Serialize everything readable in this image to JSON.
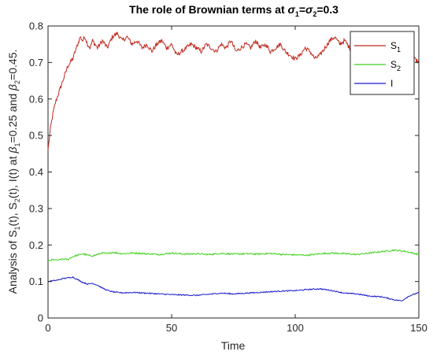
{
  "chart_data": {
    "type": "line",
    "title": {
      "prefix": "The role of Brownian terms at ",
      "sym1": "σ",
      "sub1": "1",
      "eq1": "=",
      "sym2": "σ",
      "sub2": "2",
      "suffix": "=0.3"
    },
    "xlabel": "Time",
    "ylabel": {
      "p1": "Analysis of S",
      "s1": "1",
      "p2": "(t), S",
      "s2": "2",
      "p3": "(t), I(t) at ",
      "beta1": "β",
      "s3": "1",
      "p4": "=0.25 and ",
      "beta2": "β",
      "s4": "2",
      "p5": "=0.45."
    },
    "xlim": [
      0,
      150
    ],
    "ylim": [
      0,
      0.8
    ],
    "x_ticks": [
      "0",
      "50",
      "100",
      "150"
    ],
    "y_ticks": [
      "0",
      "0.1",
      "0.2",
      "0.3",
      "0.4",
      "0.5",
      "0.6",
      "0.7",
      "0.8"
    ],
    "grid": false,
    "legend_position": "top-right",
    "series": [
      {
        "name": "S1",
        "legend_main": "S",
        "legend_sub": "1",
        "color": "#c0281e",
        "points": [
          [
            0,
            0.46
          ],
          [
            1,
            0.52
          ],
          [
            2,
            0.56
          ],
          [
            3,
            0.59
          ],
          [
            4,
            0.61
          ],
          [
            5,
            0.63
          ],
          [
            6,
            0.65
          ],
          [
            7,
            0.67
          ],
          [
            8,
            0.69
          ],
          [
            9,
            0.7
          ],
          [
            10,
            0.71
          ],
          [
            11,
            0.73
          ],
          [
            12,
            0.75
          ],
          [
            13,
            0.77
          ],
          [
            14,
            0.76
          ],
          [
            15,
            0.77
          ],
          [
            16,
            0.75
          ],
          [
            17,
            0.74
          ],
          [
            18,
            0.76
          ],
          [
            19,
            0.75
          ],
          [
            20,
            0.74
          ],
          [
            22,
            0.76
          ],
          [
            24,
            0.74
          ],
          [
            26,
            0.77
          ],
          [
            28,
            0.78
          ],
          [
            30,
            0.76
          ],
          [
            32,
            0.77
          ],
          [
            34,
            0.75
          ],
          [
            36,
            0.76
          ],
          [
            38,
            0.74
          ],
          [
            40,
            0.75
          ],
          [
            42,
            0.73
          ],
          [
            44,
            0.75
          ],
          [
            46,
            0.76
          ],
          [
            48,
            0.74
          ],
          [
            50,
            0.75
          ],
          [
            52,
            0.72
          ],
          [
            54,
            0.73
          ],
          [
            56,
            0.74
          ],
          [
            58,
            0.75
          ],
          [
            60,
            0.74
          ],
          [
            62,
            0.73
          ],
          [
            64,
            0.75
          ],
          [
            66,
            0.74
          ],
          [
            68,
            0.73
          ],
          [
            70,
            0.75
          ],
          [
            72,
            0.74
          ],
          [
            74,
            0.76
          ],
          [
            76,
            0.73
          ],
          [
            78,
            0.74
          ],
          [
            80,
            0.75
          ],
          [
            82,
            0.74
          ],
          [
            84,
            0.76
          ],
          [
            86,
            0.74
          ],
          [
            88,
            0.75
          ],
          [
            90,
            0.73
          ],
          [
            92,
            0.74
          ],
          [
            94,
            0.75
          ],
          [
            96,
            0.73
          ],
          [
            98,
            0.72
          ],
          [
            100,
            0.71
          ],
          [
            102,
            0.72
          ],
          [
            104,
            0.74
          ],
          [
            106,
            0.73
          ],
          [
            108,
            0.71
          ],
          [
            110,
            0.72
          ],
          [
            112,
            0.74
          ],
          [
            114,
            0.76
          ],
          [
            116,
            0.77
          ],
          [
            118,
            0.75
          ],
          [
            120,
            0.76
          ],
          [
            122,
            0.74
          ],
          [
            124,
            0.72
          ],
          [
            126,
            0.74
          ],
          [
            128,
            0.73
          ],
          [
            130,
            0.75
          ],
          [
            132,
            0.76
          ],
          [
            134,
            0.77
          ],
          [
            136,
            0.78
          ],
          [
            138,
            0.76
          ],
          [
            140,
            0.77
          ],
          [
            142,
            0.75
          ],
          [
            144,
            0.73
          ],
          [
            146,
            0.72
          ],
          [
            148,
            0.71
          ],
          [
            150,
            0.7
          ]
        ]
      },
      {
        "name": "S2",
        "legend_main": "S",
        "legend_sub": "2",
        "color": "#3fd11e",
        "points": [
          [
            0,
            0.155
          ],
          [
            2,
            0.16
          ],
          [
            4,
            0.158
          ],
          [
            6,
            0.162
          ],
          [
            8,
            0.16
          ],
          [
            10,
            0.168
          ],
          [
            12,
            0.172
          ],
          [
            14,
            0.176
          ],
          [
            16,
            0.172
          ],
          [
            18,
            0.17
          ],
          [
            20,
            0.174
          ],
          [
            22,
            0.178
          ],
          [
            24,
            0.176
          ],
          [
            26,
            0.18
          ],
          [
            28,
            0.178
          ],
          [
            30,
            0.176
          ],
          [
            35,
            0.178
          ],
          [
            40,
            0.176
          ],
          [
            45,
            0.174
          ],
          [
            50,
            0.178
          ],
          [
            55,
            0.175
          ],
          [
            60,
            0.176
          ],
          [
            65,
            0.174
          ],
          [
            70,
            0.177
          ],
          [
            75,
            0.175
          ],
          [
            80,
            0.176
          ],
          [
            85,
            0.175
          ],
          [
            90,
            0.177
          ],
          [
            95,
            0.174
          ],
          [
            100,
            0.173
          ],
          [
            105,
            0.172
          ],
          [
            110,
            0.176
          ],
          [
            115,
            0.178
          ],
          [
            120,
            0.176
          ],
          [
            125,
            0.174
          ],
          [
            130,
            0.178
          ],
          [
            135,
            0.182
          ],
          [
            140,
            0.186
          ],
          [
            145,
            0.182
          ],
          [
            150,
            0.174
          ]
        ]
      },
      {
        "name": "I",
        "legend_main": "I",
        "legend_sub": "",
        "color": "#1a1acd",
        "points": [
          [
            0,
            0.1
          ],
          [
            2,
            0.102
          ],
          [
            4,
            0.104
          ],
          [
            6,
            0.108
          ],
          [
            8,
            0.11
          ],
          [
            10,
            0.112
          ],
          [
            12,
            0.105
          ],
          [
            14,
            0.098
          ],
          [
            16,
            0.093
          ],
          [
            18,
            0.095
          ],
          [
            20,
            0.09
          ],
          [
            22,
            0.082
          ],
          [
            24,
            0.076
          ],
          [
            26,
            0.072
          ],
          [
            28,
            0.07
          ],
          [
            30,
            0.069
          ],
          [
            35,
            0.07
          ],
          [
            40,
            0.068
          ],
          [
            45,
            0.066
          ],
          [
            50,
            0.064
          ],
          [
            55,
            0.063
          ],
          [
            60,
            0.062
          ],
          [
            65,
            0.065
          ],
          [
            70,
            0.068
          ],
          [
            75,
            0.066
          ],
          [
            80,
            0.068
          ],
          [
            85,
            0.07
          ],
          [
            90,
            0.072
          ],
          [
            95,
            0.074
          ],
          [
            100,
            0.075
          ],
          [
            105,
            0.078
          ],
          [
            110,
            0.08
          ],
          [
            115,
            0.075
          ],
          [
            120,
            0.068
          ],
          [
            125,
            0.066
          ],
          [
            130,
            0.06
          ],
          [
            135,
            0.058
          ],
          [
            140,
            0.05
          ],
          [
            143,
            0.047
          ],
          [
            146,
            0.06
          ],
          [
            150,
            0.07
          ]
        ]
      }
    ]
  }
}
